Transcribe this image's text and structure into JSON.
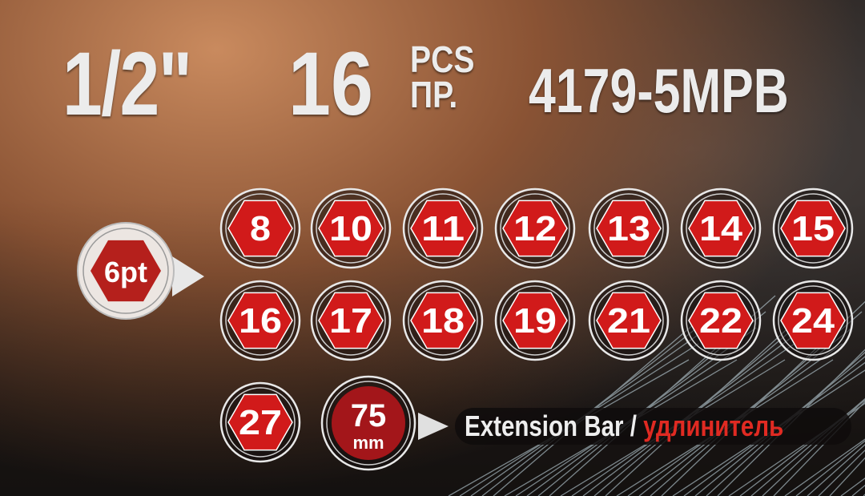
{
  "header": {
    "drive_size": "1/2\"",
    "piece_count": "16",
    "pcs_label_en": "PCS",
    "pcs_label_ru": "ПР.",
    "model": "4179-5MPB"
  },
  "point_badge": {
    "label": "6pt"
  },
  "sockets": [
    "8",
    "10",
    "11",
    "12",
    "13",
    "14",
    "15",
    "16",
    "17",
    "18",
    "19",
    "21",
    "22",
    "24",
    "27"
  ],
  "extension": {
    "length": "75",
    "unit": "mm",
    "label_en": "Extension Bar",
    "separator": "/",
    "label_ru": "удлинитель"
  },
  "colors": {
    "hex_red": "#d11a1a",
    "text_red": "#e02a22",
    "text_light": "#ececec"
  }
}
